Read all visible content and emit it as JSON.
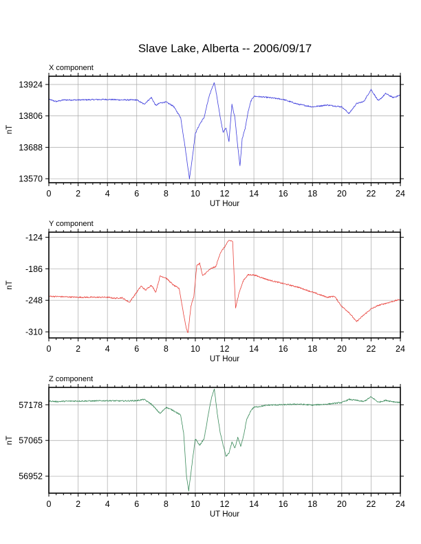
{
  "title": "Slave Lake, Alberta -- 2006/09/17",
  "chart_data": [
    {
      "type": "line",
      "panel_label": "X component",
      "xlabel": "UT Hour",
      "ylabel": "nT",
      "xlim": [
        0,
        24
      ],
      "ylim": [
        13555,
        13955
      ],
      "x_ticks": [
        0,
        2,
        4,
        6,
        8,
        10,
        12,
        14,
        16,
        18,
        20,
        22,
        24
      ],
      "y_ticks": [
        13924,
        13806,
        13688,
        13570
      ],
      "grid": true,
      "series": [
        {
          "color": "#3b3bdc",
          "x": [
            0,
            0.5,
            1,
            2,
            3,
            4,
            5,
            6,
            6.5,
            7,
            7.3,
            7.6,
            8,
            8.5,
            9,
            9.3,
            9.5,
            9.6,
            9.8,
            10,
            10.3,
            10.6,
            10.9,
            11.1,
            11.3,
            11.5,
            11.7,
            11.9,
            12.1,
            12.3,
            12.5,
            12.7,
            12.9,
            13.05,
            13.2,
            13.4,
            13.6,
            13.8,
            14,
            15,
            16,
            17,
            18,
            19,
            20,
            20.5,
            21,
            21.5,
            22,
            22.5,
            23,
            23.5,
            24
          ],
          "y": [
            13868,
            13860,
            13866,
            13866,
            13867,
            13868,
            13866,
            13866,
            13850,
            13875,
            13845,
            13855,
            13858,
            13843,
            13800,
            13690,
            13610,
            13570,
            13650,
            13740,
            13775,
            13800,
            13870,
            13905,
            13932,
            13870,
            13800,
            13745,
            13760,
            13710,
            13850,
            13800,
            13690,
            13618,
            13720,
            13758,
            13820,
            13862,
            13880,
            13875,
            13868,
            13850,
            13840,
            13847,
            13840,
            13815,
            13852,
            13860,
            13905,
            13862,
            13890,
            13875,
            13884
          ]
        }
      ]
    },
    {
      "type": "line",
      "panel_label": "Y component",
      "xlabel": "UT Hour",
      "ylabel": "nT",
      "xlim": [
        0,
        24
      ],
      "ylim": [
        -322,
        -114
      ],
      "x_ticks": [
        0,
        2,
        4,
        6,
        8,
        10,
        12,
        14,
        16,
        18,
        20,
        22,
        24
      ],
      "y_ticks": [
        -124,
        -186,
        -248,
        -310
      ],
      "grid": true,
      "series": [
        {
          "color": "#e8403a",
          "x": [
            0,
            1,
            2,
            3,
            4,
            4.5,
            5,
            5.5,
            5.8,
            6,
            6.3,
            6.6,
            7,
            7.3,
            7.6,
            8,
            8.5,
            8.9,
            9.2,
            9.4,
            9.5,
            9.7,
            9.9,
            10.1,
            10.3,
            10.5,
            10.8,
            11.1,
            11.4,
            11.7,
            12,
            12.3,
            12.55,
            12.65,
            12.75,
            13,
            13.3,
            13.6,
            14,
            15,
            16,
            17,
            18,
            19,
            19.5,
            20,
            20.5,
            21,
            21.5,
            22,
            22.5,
            23,
            24
          ],
          "y": [
            -240,
            -241,
            -242,
            -242,
            -242,
            -244,
            -243,
            -252,
            -240,
            -232,
            -220,
            -228,
            -218,
            -232,
            -200,
            -204,
            -218,
            -225,
            -275,
            -305,
            -312,
            -260,
            -240,
            -180,
            -175,
            -200,
            -192,
            -185,
            -182,
            -155,
            -143,
            -130,
            -132,
            -200,
            -262,
            -232,
            -208,
            -198,
            -198,
            -208,
            -215,
            -222,
            -232,
            -242,
            -240,
            -260,
            -272,
            -290,
            -277,
            -265,
            -258,
            -254,
            -246
          ]
        }
      ]
    },
    {
      "type": "line",
      "panel_label": "Z component",
      "xlabel": "UT Hour",
      "ylabel": "nT",
      "xlim": [
        0,
        24
      ],
      "ylim": [
        56898,
        57233
      ],
      "x_ticks": [
        0,
        2,
        4,
        6,
        8,
        10,
        12,
        14,
        16,
        18,
        20,
        22,
        24
      ],
      "y_ticks": [
        57178,
        57065,
        56952
      ],
      "grid": true,
      "series": [
        {
          "color": "#3a8a5a",
          "x": [
            0,
            0.5,
            1,
            2,
            3,
            4,
            5,
            6,
            6.5,
            7,
            7.3,
            7.6,
            8,
            8.5,
            9,
            9.2,
            9.4,
            9.55,
            9.8,
            10,
            10.3,
            10.6,
            10.9,
            11.1,
            11.3,
            11.5,
            11.7,
            11.9,
            12.1,
            12.3,
            12.5,
            12.7,
            12.9,
            13.1,
            13.3,
            13.5,
            13.8,
            14,
            15,
            16,
            17,
            18,
            19,
            20,
            20.5,
            21,
            21.5,
            22,
            22.5,
            23,
            23.5,
            24
          ],
          "y": [
            57190,
            57188,
            57189,
            57190,
            57190,
            57191,
            57190,
            57191,
            57195,
            57180,
            57165,
            57150,
            57170,
            57160,
            57145,
            57090,
            56950,
            56905,
            57000,
            57070,
            57050,
            57070,
            57150,
            57200,
            57227,
            57150,
            57090,
            57050,
            57015,
            57025,
            57060,
            57040,
            57075,
            57045,
            57080,
            57130,
            57160,
            57170,
            57177,
            57178,
            57180,
            57177,
            57180,
            57185,
            57195,
            57192,
            57188,
            57203,
            57186,
            57192,
            57188,
            57185
          ]
        }
      ]
    }
  ]
}
